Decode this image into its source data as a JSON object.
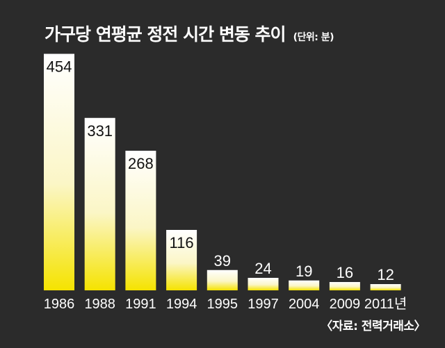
{
  "chart_data": {
    "type": "bar",
    "title": "가구당 연평균 정전 시간 변동 추이",
    "unit_note": "(단위: 분)",
    "categories": [
      "1986",
      "1988",
      "1991",
      "1994",
      "1995",
      "1997",
      "2004",
      "2009",
      "2011년"
    ],
    "values": [
      454,
      331,
      268,
      116,
      39,
      24,
      19,
      16,
      12
    ],
    "xlabel": "",
    "ylabel": "",
    "ylim": [
      0,
      460
    ],
    "grid": false,
    "legend": "none",
    "source": "〈자료: 전력거래소〉"
  },
  "colors": {
    "background": "#2b2b2b",
    "bar_top": "#ffffff",
    "bar_bottom": "#f5e300",
    "text": "#ffffff",
    "value_text": "#111111"
  }
}
